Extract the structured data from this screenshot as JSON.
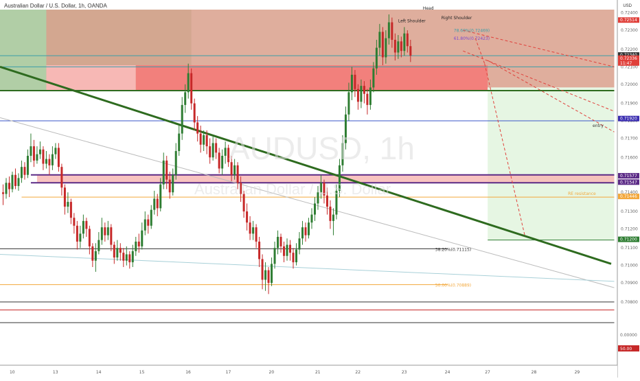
{
  "header": {
    "title": "Australian Dollar / U.S. Dollar, 1h, OANDA",
    "currency": "USD"
  },
  "watermark": {
    "symbol": "AUDUSD, 1h",
    "name": "Australian Dollar / U.S. Dollar"
  },
  "colors": {
    "up": "#2e7d32",
    "down": "#c62828",
    "trend": "#2e6b1f",
    "target_bg": "#e6f6e3",
    "stop_bg": "#d9a08c",
    "zone_red": "#f2807c",
    "zone_pink": "#f7b8b5",
    "zone_green": "#a9c99c",
    "purple": "#5b2a86",
    "orange": "#f3a73a",
    "blue": "#3a56c8",
    "dashed_red": "#e0403a"
  },
  "chart_data": {
    "type": "candlestick",
    "symbol": "AUDUSD",
    "timeframe": "1h",
    "y_range": [
      0.7065,
      0.7262
    ],
    "x_range": [
      0,
      2
    ],
    "x_ticks": [
      {
        "label": "10",
        "x": 0.04
      },
      {
        "label": "13",
        "x": 0.18
      },
      {
        "label": "14",
        "x": 0.32
      },
      {
        "label": "15",
        "x": 0.46
      },
      {
        "label": "16",
        "x": 0.61
      },
      {
        "label": "17",
        "x": 0.74
      },
      {
        "label": "20",
        "x": 0.88
      },
      {
        "label": "21",
        "x": 1.03
      },
      {
        "label": "22",
        "x": 1.16
      },
      {
        "label": "23",
        "x": 1.31
      },
      {
        "label": "24",
        "x": 1.45
      },
      {
        "label": "27",
        "x": 1.58
      },
      {
        "label": "28",
        "x": 1.73
      },
      {
        "label": "29",
        "x": 1.87
      }
    ],
    "y_ticks": [
      0.7078,
      0.709,
      0.7101,
      0.7112,
      0.7124,
      0.7135,
      0.7147,
      0.7158,
      0.7169,
      0.7181,
      0.7192,
      0.7203,
      0.7215,
      0.7226,
      0.7237,
      0.7249,
      0.726
    ],
    "y_tick_labels": [
      "0.70800",
      "0.70900",
      "0.71000",
      "0.71100",
      "0.71200",
      "0.71300",
      "0.71400",
      "0.71500",
      "0.71600",
      "0.71700",
      "0.71800",
      "0.71900",
      "0.72000",
      "0.72100",
      "0.72200",
      "0.72300",
      "0.72400"
    ],
    "current_price_tags": [
      {
        "label": "0.72514",
        "price": 0.7255,
        "color": "#e0403a"
      },
      {
        "label": "0.72340",
        "price": 0.7233,
        "color": "#333333"
      },
      {
        "label": "0.72336\n11:47",
        "price": 0.7231,
        "color": "#e0403a"
      },
      {
        "label": "0.71920",
        "price": 0.7193,
        "color": "#3a2db0"
      },
      {
        "label": "0.71577",
        "price": 0.7157,
        "color": "#5b2a86"
      },
      {
        "label": "0.71547",
        "price": 0.7153,
        "color": "#5b2a86"
      },
      {
        "label": "0.71446",
        "price": 0.7144,
        "color": "#f3a73a"
      },
      {
        "label": "0.71200",
        "price": 0.7117,
        "color": "#2e7d32"
      }
    ],
    "levels": {
      "entry": 0.7192,
      "entry_label": "entry",
      "resistance": 0.7144,
      "resistance_label": "RE resistance",
      "fib_382": 0.71115,
      "fib_382_label": "38.20%(0.71115)",
      "fib_50": 0.70889,
      "fib_50_label": "50.00%(0.70889)",
      "fib_786_label": "78.60%(0.72469)",
      "fib_618_label": "61.80%(0.72423)",
      "zone_low": 0.7153,
      "zone_high": 0.7158,
      "target": 0.7117,
      "stop_top": 0.7262,
      "stop_bottom": 0.7213,
      "red_zone_top": 0.7227,
      "red_zone_bottom": 0.7211
    },
    "pattern_labels": {
      "left_shoulder": "Left Shoulder",
      "head": "Head",
      "right_shoulder": "Right Shoulder"
    },
    "trendline": {
      "p1": [
        0.0,
        0.7226
      ],
      "p2": [
        1.98,
        0.7102
      ]
    },
    "candles": [
      [
        0.01,
        0.7147,
        0.7146,
        0.7152,
        0.7139
      ],
      [
        0.02,
        0.7146,
        0.7153,
        0.7156,
        0.7143
      ],
      [
        0.03,
        0.7153,
        0.7149,
        0.7157,
        0.7144
      ],
      [
        0.04,
        0.7149,
        0.7158,
        0.716,
        0.7147
      ],
      [
        0.05,
        0.7158,
        0.7151,
        0.7162,
        0.7149
      ],
      [
        0.06,
        0.7151,
        0.7156,
        0.7159,
        0.7148
      ],
      [
        0.07,
        0.7156,
        0.7163,
        0.7167,
        0.7153
      ],
      [
        0.08,
        0.7163,
        0.7158,
        0.7166,
        0.7155
      ],
      [
        0.09,
        0.7158,
        0.717,
        0.7174,
        0.7156
      ],
      [
        0.1,
        0.717,
        0.7176,
        0.7184,
        0.7166
      ],
      [
        0.11,
        0.7176,
        0.7167,
        0.718,
        0.7163
      ],
      [
        0.12,
        0.7167,
        0.7171,
        0.7176,
        0.7165
      ],
      [
        0.13,
        0.7171,
        0.7174,
        0.7179,
        0.7168
      ],
      [
        0.14,
        0.7174,
        0.7165,
        0.7176,
        0.7161
      ],
      [
        0.15,
        0.7165,
        0.7168,
        0.7173,
        0.7162
      ],
      [
        0.16,
        0.7168,
        0.7164,
        0.7171,
        0.7158
      ],
      [
        0.17,
        0.7164,
        0.7171,
        0.7176,
        0.7161
      ],
      [
        0.18,
        0.7171,
        0.7175,
        0.7178,
        0.7168
      ],
      [
        0.19,
        0.7175,
        0.7163,
        0.7178,
        0.716
      ],
      [
        0.2,
        0.7163,
        0.715,
        0.7165,
        0.7145
      ],
      [
        0.21,
        0.715,
        0.7138,
        0.7152,
        0.7133
      ],
      [
        0.22,
        0.7138,
        0.7141,
        0.7147,
        0.7134
      ],
      [
        0.23,
        0.7141,
        0.7131,
        0.7143,
        0.7127
      ],
      [
        0.24,
        0.7131,
        0.7126,
        0.7134,
        0.7121
      ],
      [
        0.25,
        0.7126,
        0.7116,
        0.7129,
        0.7111
      ],
      [
        0.26,
        0.7116,
        0.7121,
        0.7126,
        0.7112
      ],
      [
        0.27,
        0.7121,
        0.7129,
        0.7133,
        0.7118
      ],
      [
        0.28,
        0.7129,
        0.7124,
        0.7131,
        0.7119
      ],
      [
        0.29,
        0.7124,
        0.7113,
        0.7126,
        0.7108
      ],
      [
        0.3,
        0.7113,
        0.7104,
        0.7115,
        0.71
      ],
      [
        0.31,
        0.7104,
        0.711,
        0.7115,
        0.7097
      ],
      [
        0.32,
        0.711,
        0.7117,
        0.7122,
        0.7108
      ],
      [
        0.33,
        0.7117,
        0.7125,
        0.7131,
        0.7114
      ],
      [
        0.34,
        0.7125,
        0.712,
        0.7128,
        0.7116
      ],
      [
        0.35,
        0.712,
        0.7125,
        0.7129,
        0.7117
      ],
      [
        0.36,
        0.7125,
        0.7114,
        0.7127,
        0.711
      ],
      [
        0.37,
        0.7114,
        0.7106,
        0.7116,
        0.7102
      ],
      [
        0.38,
        0.7106,
        0.7112,
        0.7117,
        0.7104
      ],
      [
        0.39,
        0.7112,
        0.7109,
        0.7115,
        0.7104
      ],
      [
        0.4,
        0.7109,
        0.7104,
        0.7112,
        0.71
      ],
      [
        0.41,
        0.7104,
        0.7108,
        0.7113,
        0.7101
      ],
      [
        0.42,
        0.7108,
        0.7103,
        0.711,
        0.7099
      ],
      [
        0.43,
        0.7103,
        0.711,
        0.7114,
        0.71
      ],
      [
        0.44,
        0.711,
        0.7116,
        0.7119,
        0.7107
      ],
      [
        0.45,
        0.7116,
        0.7113,
        0.7121,
        0.7109
      ],
      [
        0.46,
        0.7113,
        0.7123,
        0.7128,
        0.7111
      ],
      [
        0.47,
        0.7123,
        0.713,
        0.7135,
        0.712
      ],
      [
        0.48,
        0.713,
        0.7126,
        0.7133,
        0.7121
      ],
      [
        0.49,
        0.7126,
        0.7136,
        0.7139,
        0.7124
      ],
      [
        0.5,
        0.7136,
        0.7143,
        0.7148,
        0.7133
      ],
      [
        0.51,
        0.7143,
        0.7137,
        0.7146,
        0.7132
      ],
      [
        0.52,
        0.7137,
        0.7152,
        0.7156,
        0.7135
      ],
      [
        0.53,
        0.7152,
        0.7167,
        0.7172,
        0.7149
      ],
      [
        0.54,
        0.7167,
        0.7155,
        0.717,
        0.7149
      ],
      [
        0.55,
        0.7155,
        0.7147,
        0.716,
        0.7143
      ],
      [
        0.56,
        0.7147,
        0.7158,
        0.7162,
        0.7145
      ],
      [
        0.57,
        0.7158,
        0.7173,
        0.7178,
        0.7155
      ],
      [
        0.58,
        0.7173,
        0.7184,
        0.7189,
        0.717
      ],
      [
        0.59,
        0.7184,
        0.7202,
        0.7207,
        0.718
      ],
      [
        0.6,
        0.7202,
        0.721,
        0.7215,
        0.7197
      ],
      [
        0.61,
        0.721,
        0.7222,
        0.7228,
        0.7206
      ],
      [
        0.62,
        0.7222,
        0.7203,
        0.7225,
        0.7199
      ],
      [
        0.63,
        0.7203,
        0.7191,
        0.7206,
        0.7186
      ],
      [
        0.64,
        0.7191,
        0.7184,
        0.7195,
        0.7179
      ],
      [
        0.65,
        0.7184,
        0.7177,
        0.7189,
        0.7172
      ],
      [
        0.66,
        0.7177,
        0.7183,
        0.7186,
        0.7173
      ],
      [
        0.67,
        0.7183,
        0.7176,
        0.7186,
        0.7171
      ],
      [
        0.68,
        0.7176,
        0.7169,
        0.7181,
        0.7165
      ],
      [
        0.69,
        0.7169,
        0.7178,
        0.7182,
        0.7167
      ],
      [
        0.7,
        0.7178,
        0.7172,
        0.7181,
        0.7168
      ],
      [
        0.71,
        0.7172,
        0.7162,
        0.7175,
        0.7159
      ],
      [
        0.72,
        0.7162,
        0.717,
        0.7174,
        0.7158
      ],
      [
        0.73,
        0.717,
        0.7175,
        0.7179,
        0.7165
      ],
      [
        0.74,
        0.7175,
        0.7166,
        0.7177,
        0.7163
      ],
      [
        0.75,
        0.7166,
        0.7158,
        0.717,
        0.7154
      ],
      [
        0.76,
        0.7158,
        0.7164,
        0.7168,
        0.7155
      ],
      [
        0.77,
        0.7164,
        0.7153,
        0.7166,
        0.7149
      ],
      [
        0.78,
        0.7153,
        0.7146,
        0.7157,
        0.7141
      ],
      [
        0.79,
        0.7146,
        0.7135,
        0.7148,
        0.7131
      ],
      [
        0.8,
        0.7135,
        0.7128,
        0.714,
        0.7123
      ],
      [
        0.81,
        0.7128,
        0.7121,
        0.7132,
        0.7117
      ],
      [
        0.82,
        0.7121,
        0.7125,
        0.7129,
        0.7117
      ],
      [
        0.83,
        0.7125,
        0.7116,
        0.7127,
        0.7112
      ],
      [
        0.84,
        0.7116,
        0.7105,
        0.7119,
        0.71
      ],
      [
        0.85,
        0.7105,
        0.7092,
        0.7108,
        0.7086
      ],
      [
        0.86,
        0.7092,
        0.7098,
        0.7103,
        0.7085
      ],
      [
        0.87,
        0.7098,
        0.709,
        0.71,
        0.7083
      ],
      [
        0.88,
        0.709,
        0.7102,
        0.7106,
        0.7088
      ],
      [
        0.89,
        0.7102,
        0.7112,
        0.7116,
        0.7099
      ],
      [
        0.9,
        0.7112,
        0.7119,
        0.7123,
        0.7108
      ],
      [
        0.91,
        0.7119,
        0.7113,
        0.7121,
        0.7109
      ],
      [
        0.92,
        0.7113,
        0.7107,
        0.7116,
        0.7103
      ],
      [
        0.93,
        0.7107,
        0.7114,
        0.7118,
        0.7104
      ],
      [
        0.94,
        0.7114,
        0.7109,
        0.7117,
        0.7104
      ],
      [
        0.95,
        0.7109,
        0.7103,
        0.7112,
        0.7099
      ],
      [
        0.96,
        0.7103,
        0.7111,
        0.7115,
        0.7101
      ],
      [
        0.97,
        0.7111,
        0.7118,
        0.7122,
        0.7108
      ],
      [
        0.98,
        0.7118,
        0.7125,
        0.7129,
        0.7114
      ],
      [
        0.99,
        0.7125,
        0.712,
        0.7128,
        0.7116
      ],
      [
        1.0,
        0.712,
        0.7128,
        0.7131,
        0.7118
      ],
      [
        1.01,
        0.7128,
        0.7133,
        0.7137,
        0.7124
      ],
      [
        1.02,
        0.7133,
        0.714,
        0.7144,
        0.7129
      ],
      [
        1.03,
        0.714,
        0.7147,
        0.7151,
        0.7136
      ],
      [
        1.04,
        0.7147,
        0.7153,
        0.7158,
        0.7143
      ],
      [
        1.05,
        0.7153,
        0.7145,
        0.7155,
        0.714
      ],
      [
        1.06,
        0.7145,
        0.7138,
        0.715,
        0.7133
      ],
      [
        1.07,
        0.7138,
        0.7129,
        0.7142,
        0.7124
      ],
      [
        1.08,
        0.7129,
        0.7133,
        0.7137,
        0.712
      ],
      [
        1.09,
        0.7133,
        0.7148,
        0.7152,
        0.713
      ],
      [
        1.1,
        0.7148,
        0.7164,
        0.7168,
        0.7144
      ],
      [
        1.11,
        0.7164,
        0.7178,
        0.7183,
        0.716
      ],
      [
        1.12,
        0.7178,
        0.7196,
        0.7201,
        0.7174
      ],
      [
        1.13,
        0.7196,
        0.721,
        0.7216,
        0.7192
      ],
      [
        1.14,
        0.721,
        0.7221,
        0.7226,
        0.7205
      ],
      [
        1.15,
        0.7221,
        0.7212,
        0.7224,
        0.7207
      ],
      [
        1.16,
        0.7212,
        0.7204,
        0.7215,
        0.7199
      ],
      [
        1.17,
        0.7204,
        0.7214,
        0.7218,
        0.72
      ],
      [
        1.18,
        0.7214,
        0.7209,
        0.7217,
        0.7203
      ],
      [
        1.19,
        0.7209,
        0.7202,
        0.7212,
        0.7196
      ],
      [
        1.2,
        0.7202,
        0.7213,
        0.7218,
        0.7199
      ],
      [
        1.21,
        0.7213,
        0.7225,
        0.7229,
        0.721
      ],
      [
        1.22,
        0.7225,
        0.7238,
        0.7243,
        0.7221
      ],
      [
        1.23,
        0.7238,
        0.7248,
        0.7253,
        0.7233
      ],
      [
        1.24,
        0.7248,
        0.7232,
        0.7251,
        0.7227
      ],
      [
        1.25,
        0.7232,
        0.7244,
        0.7249,
        0.7228
      ],
      [
        1.26,
        0.7244,
        0.7254,
        0.7259,
        0.724
      ],
      [
        1.27,
        0.7254,
        0.7243,
        0.7257,
        0.7238
      ],
      [
        1.28,
        0.7243,
        0.7235,
        0.7247,
        0.723
      ],
      [
        1.29,
        0.7235,
        0.7242,
        0.7246,
        0.7231
      ],
      [
        1.3,
        0.7242,
        0.7236,
        0.7245,
        0.7232
      ],
      [
        1.31,
        0.7236,
        0.7247,
        0.7251,
        0.7233
      ],
      [
        1.32,
        0.7247,
        0.7239,
        0.7249,
        0.7235
      ],
      [
        1.33,
        0.7239,
        0.7233,
        0.7243,
        0.7229
      ]
    ]
  }
}
